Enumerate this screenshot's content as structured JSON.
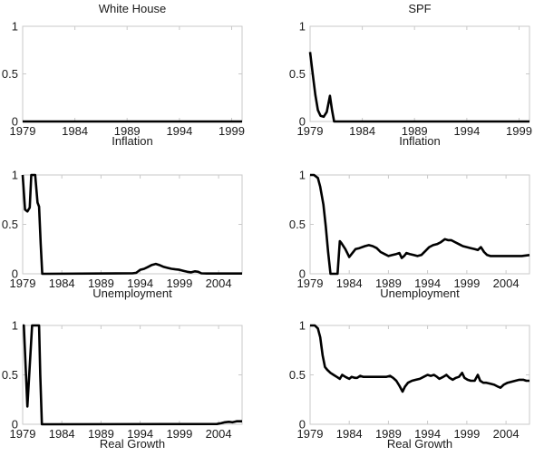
{
  "figure": {
    "background": "#ffffff",
    "column_titles": [
      "White House",
      "SPF"
    ],
    "row_labels": [
      "Inflation",
      "Unemployment",
      "Real Growth"
    ]
  },
  "style": {
    "line_color": "#000000",
    "frame_color": "#c9c9c9",
    "text_color": "#1a1a1a",
    "line_width": 2.6,
    "tick_length": 4
  },
  "chart_data": [
    {
      "id": "white-house-inflation",
      "type": "line",
      "title": "White House",
      "xlabel": "Inflation",
      "ylabel": "",
      "xlim": [
        1979,
        2000
      ],
      "ylim": [
        0,
        1
      ],
      "xticks": [
        1979,
        1984,
        1989,
        1994,
        1999
      ],
      "yticks": [
        0,
        0.5,
        1
      ],
      "grid": false,
      "series": [
        {
          "x": [
            1979,
            2000
          ],
          "y": [
            0,
            0
          ]
        }
      ]
    },
    {
      "id": "spf-inflation",
      "type": "line",
      "title": "SPF",
      "xlabel": "Inflation",
      "ylabel": "",
      "xlim": [
        1979,
        2000
      ],
      "ylim": [
        0,
        1
      ],
      "xticks": [
        1979,
        1984,
        1989,
        1994,
        1999
      ],
      "yticks": [
        0,
        0.5,
        1
      ],
      "grid": false,
      "series": [
        {
          "x": [
            1979,
            1979.25,
            1979.5,
            1979.75,
            1980,
            1980.3,
            1980.6,
            1980.9,
            1981.1,
            1981.3,
            1982,
            2000
          ],
          "y": [
            0.73,
            0.5,
            0.28,
            0.12,
            0.06,
            0.05,
            0.1,
            0.27,
            0.12,
            0,
            0,
            0
          ]
        }
      ]
    },
    {
      "id": "white-house-unemployment",
      "type": "line",
      "title": "",
      "xlabel": "Unemployment",
      "ylabel": "",
      "xlim": [
        1979,
        2007
      ],
      "ylim": [
        0,
        1
      ],
      "xticks": [
        1979,
        1984,
        1989,
        1994,
        1999,
        2004
      ],
      "yticks": [
        0,
        0.5,
        1
      ],
      "grid": false,
      "series": [
        {
          "x": [
            1979,
            1979.3,
            1979.6,
            1979.9,
            1980.1,
            1980.6,
            1980.9,
            1981.1,
            1981.3,
            1981.5,
            1982,
            1993,
            1993.5,
            1994,
            1994.5,
            1995,
            1995.5,
            1996,
            1996.4,
            1997,
            1997.5,
            1998,
            1998.5,
            1999,
            1999.5,
            2000,
            2000.5,
            2001,
            2001.4,
            2001.8,
            2002.5,
            2007
          ],
          "y": [
            1,
            0.65,
            0.63,
            0.67,
            1,
            1,
            0.72,
            0.68,
            0.3,
            0,
            0,
            0.005,
            0.01,
            0.04,
            0.05,
            0.07,
            0.09,
            0.1,
            0.09,
            0.07,
            0.06,
            0.05,
            0.045,
            0.04,
            0.03,
            0.02,
            0.015,
            0.025,
            0.02,
            0.005,
            0.003,
            0.003
          ]
        }
      ]
    },
    {
      "id": "spf-unemployment",
      "type": "line",
      "title": "",
      "xlabel": "Unemployment",
      "ylabel": "",
      "xlim": [
        1979,
        2007
      ],
      "ylim": [
        0,
        1
      ],
      "xticks": [
        1979,
        1984,
        1989,
        1994,
        1999,
        2004
      ],
      "yticks": [
        0,
        0.5,
        1
      ],
      "grid": false,
      "series": [
        {
          "x": [
            1979,
            1979.5,
            1980,
            1980.3,
            1980.7,
            1981,
            1981.3,
            1981.6,
            1982.5,
            1982.8,
            1983,
            1983.5,
            1984,
            1984.4,
            1984.8,
            1985.3,
            1986,
            1986.5,
            1987,
            1987.5,
            1988,
            1988.5,
            1989,
            1989.5,
            1990,
            1990.4,
            1990.7,
            1991,
            1991.3,
            1991.7,
            1992.2,
            1992.7,
            1993.2,
            1993.7,
            1994.2,
            1994.7,
            1995.2,
            1995.7,
            1996.2,
            1996.6,
            1997,
            1997.5,
            1998,
            1998.5,
            1999,
            1999.5,
            2000,
            2000.4,
            2000.8,
            2001.2,
            2001.6,
            2002,
            2003,
            2004,
            2005,
            2006,
            2007
          ],
          "y": [
            1,
            1,
            0.97,
            0.88,
            0.7,
            0.48,
            0.22,
            0,
            0,
            0.33,
            0.31,
            0.25,
            0.17,
            0.21,
            0.25,
            0.26,
            0.28,
            0.29,
            0.28,
            0.26,
            0.22,
            0.2,
            0.18,
            0.19,
            0.2,
            0.21,
            0.16,
            0.18,
            0.21,
            0.2,
            0.19,
            0.18,
            0.19,
            0.23,
            0.27,
            0.29,
            0.3,
            0.32,
            0.35,
            0.34,
            0.34,
            0.32,
            0.3,
            0.28,
            0.27,
            0.26,
            0.25,
            0.24,
            0.27,
            0.22,
            0.19,
            0.18,
            0.18,
            0.18,
            0.18,
            0.18,
            0.19
          ]
        }
      ]
    },
    {
      "id": "white-house-real-growth",
      "type": "line",
      "title": "",
      "xlabel": "Real Growth",
      "ylabel": "",
      "xlim": [
        1979,
        2007
      ],
      "ylim": [
        0,
        1
      ],
      "xticks": [
        1979,
        1984,
        1989,
        1994,
        1999,
        2004
      ],
      "yticks": [
        0,
        0.5,
        1
      ],
      "grid": false,
      "series": [
        {
          "x": [
            1979,
            1979.15,
            1979.6,
            1980.2,
            1981.1,
            1981.25,
            1981.45,
            1982,
            2003.8,
            2004.3,
            2004.8,
            2005.3,
            2005.8,
            2006.3,
            2007
          ],
          "y": [
            1,
            1,
            0.18,
            1,
            1,
            0.5,
            0,
            0,
            0.003,
            0.01,
            0.02,
            0.025,
            0.02,
            0.03,
            0.03
          ]
        }
      ]
    },
    {
      "id": "spf-real-growth",
      "type": "line",
      "title": "",
      "xlabel": "Real Growth",
      "ylabel": "",
      "xlim": [
        1979,
        2007
      ],
      "ylim": [
        0,
        1
      ],
      "xticks": [
        1979,
        1984,
        1989,
        1994,
        1999,
        2004
      ],
      "yticks": [
        0,
        0.5,
        1
      ],
      "grid": false,
      "series": [
        {
          "x": [
            1979,
            1979.6,
            1980,
            1980.3,
            1980.6,
            1980.9,
            1981.2,
            1981.6,
            1982,
            1982.4,
            1982.8,
            1983.1,
            1983.5,
            1984,
            1984.3,
            1984.7,
            1985,
            1985.4,
            1985.8,
            1986.2,
            1987,
            1988,
            1988.7,
            1989.2,
            1989.6,
            1990,
            1990.4,
            1990.8,
            1991.1,
            1991.5,
            1992,
            1992.5,
            1993,
            1993.5,
            1994,
            1994.4,
            1994.8,
            1995.2,
            1995.5,
            1996,
            1996.4,
            1996.8,
            1997.2,
            1997.6,
            1998,
            1998.4,
            1998.7,
            1999.1,
            1999.5,
            2000,
            2000.4,
            2000.7,
            2001.1,
            2001.5,
            2002,
            2002.5,
            2003,
            2003.3,
            2003.7,
            2004.2,
            2004.7,
            2005.2,
            2005.7,
            2006.2,
            2006.6,
            2007
          ],
          "y": [
            1,
            1,
            0.97,
            0.88,
            0.7,
            0.58,
            0.55,
            0.52,
            0.5,
            0.48,
            0.46,
            0.5,
            0.48,
            0.46,
            0.48,
            0.47,
            0.47,
            0.49,
            0.48,
            0.48,
            0.48,
            0.48,
            0.48,
            0.49,
            0.47,
            0.44,
            0.39,
            0.33,
            0.38,
            0.42,
            0.44,
            0.45,
            0.46,
            0.48,
            0.5,
            0.49,
            0.5,
            0.48,
            0.46,
            0.48,
            0.5,
            0.47,
            0.45,
            0.47,
            0.48,
            0.52,
            0.47,
            0.45,
            0.44,
            0.44,
            0.5,
            0.44,
            0.42,
            0.42,
            0.41,
            0.4,
            0.38,
            0.37,
            0.4,
            0.42,
            0.43,
            0.44,
            0.45,
            0.45,
            0.44,
            0.44
          ]
        }
      ]
    }
  ]
}
